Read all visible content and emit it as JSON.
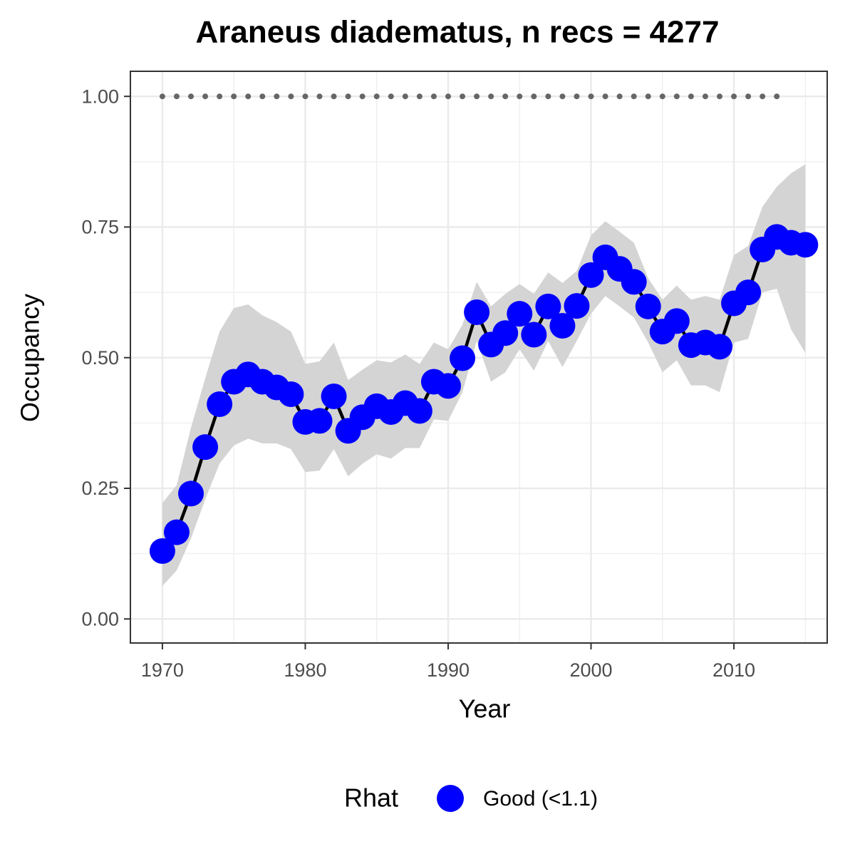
{
  "chart_data": {
    "type": "line",
    "title": "Araneus diadematus, n recs = 4277",
    "x_label": "Year",
    "y_label": "Occupancy",
    "legend_title": "Rhat",
    "legend_position": "bottom",
    "grid": true,
    "x": [
      1970,
      1971,
      1972,
      1973,
      1974,
      1975,
      1976,
      1977,
      1978,
      1979,
      1980,
      1981,
      1982,
      1983,
      1984,
      1985,
      1986,
      1987,
      1988,
      1989,
      1990,
      1991,
      1992,
      1993,
      1994,
      1995,
      1996,
      1997,
      1998,
      1999,
      2000,
      2001,
      2002,
      2003,
      2004,
      2005,
      2006,
      2007,
      2008,
      2009,
      2010,
      2011,
      2012,
      2013,
      2014,
      2015
    ],
    "series": [
      {
        "name": "Good (<1.1)",
        "color": "#0000ff",
        "line_color": "#000000",
        "band_color": "#d4d4d4",
        "values": [
          0.13,
          0.166,
          0.24,
          0.329,
          0.411,
          0.454,
          0.468,
          0.454,
          0.443,
          0.43,
          0.377,
          0.379,
          0.426,
          0.36,
          0.386,
          0.407,
          0.396,
          0.413,
          0.398,
          0.454,
          0.446,
          0.499,
          0.587,
          0.525,
          0.547,
          0.584,
          0.544,
          0.598,
          0.561,
          0.599,
          0.658,
          0.692,
          0.67,
          0.645,
          0.598,
          0.55,
          0.57,
          0.524,
          0.529,
          0.521,
          0.604,
          0.625,
          0.707,
          0.731,
          0.72,
          0.716
        ],
        "lower": [
          0.063,
          0.093,
          0.154,
          0.229,
          0.297,
          0.332,
          0.345,
          0.336,
          0.336,
          0.325,
          0.281,
          0.284,
          0.325,
          0.273,
          0.297,
          0.315,
          0.307,
          0.327,
          0.327,
          0.382,
          0.379,
          0.434,
          0.532,
          0.454,
          0.472,
          0.516,
          0.475,
          0.532,
          0.482,
          0.532,
          0.584,
          0.618,
          0.598,
          0.577,
          0.529,
          0.472,
          0.495,
          0.447,
          0.447,
          0.434,
          0.529,
          0.536,
          0.625,
          0.632,
          0.554,
          0.509
        ],
        "upper": [
          0.222,
          0.256,
          0.366,
          0.461,
          0.55,
          0.595,
          0.602,
          0.581,
          0.568,
          0.55,
          0.488,
          0.493,
          0.529,
          0.457,
          0.477,
          0.495,
          0.491,
          0.506,
          0.488,
          0.529,
          0.516,
          0.563,
          0.645,
          0.598,
          0.622,
          0.641,
          0.622,
          0.663,
          0.643,
          0.666,
          0.734,
          0.761,
          0.741,
          0.72,
          0.652,
          0.611,
          0.638,
          0.611,
          0.618,
          0.611,
          0.696,
          0.714,
          0.789,
          0.827,
          0.853,
          0.87
        ]
      }
    ],
    "reference": {
      "color": "#666666",
      "values": [
        1,
        1,
        1,
        1,
        1,
        1,
        1,
        1,
        1,
        1,
        1,
        1,
        1,
        1,
        1,
        1,
        1,
        1,
        1,
        1,
        1,
        1,
        1,
        1,
        1,
        1,
        1,
        1,
        1,
        1,
        1,
        1,
        1,
        1,
        1,
        1,
        1,
        1,
        1,
        1,
        1,
        1,
        1,
        1,
        null,
        null
      ]
    },
    "xlim": [
      1967.76,
      2016.53
    ],
    "ylim": [
      -0.046,
      1.048
    ],
    "xticks": [
      1970,
      1980,
      1990,
      2000,
      2010
    ],
    "yticks": [
      {
        "value": 0,
        "label": "0.00"
      },
      0.25,
      {
        "value": 0.5,
        "label": "0.50"
      },
      0.75,
      {
        "value": 1,
        "label": "1.00"
      }
    ]
  }
}
